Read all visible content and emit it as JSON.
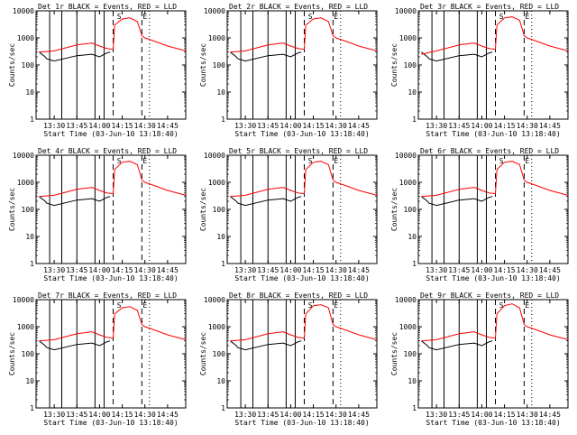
{
  "figure": {
    "start_time_label": "Start Time (03-Jun-10 13:18:40)",
    "y_axis_label": "Counts/sec",
    "x_tick_labels": [
      "13:30",
      "13:45",
      "14:00",
      "14:15",
      "14:30",
      "14:45"
    ],
    "y_tick_labels": [
      "1",
      "10",
      "100",
      "1000",
      "10000"
    ],
    "marker_labels": [
      "S",
      "E"
    ],
    "colors": {
      "events": "#000000",
      "lld": "#ff0000",
      "axes": "#000000",
      "background": "#ffffff"
    }
  },
  "chart_data": [
    {
      "type": "line",
      "title": "Det 1r BLACK = Events, RED = LLD",
      "x_range_hours": [
        "13:18",
        "14:57"
      ],
      "ylim": [
        1,
        10000
      ],
      "y_scale": "log",
      "series": [
        {
          "name": "Events",
          "color": "#000000",
          "x": [
            "13:20",
            "13:24",
            "13:25",
            "13:30",
            "13:45",
            "13:55",
            "14:00",
            "14:05",
            "14:07"
          ],
          "y": [
            300,
            200,
            170,
            140,
            220,
            250,
            200,
            280,
            300
          ]
        },
        {
          "name": "LLD",
          "color": "#ff0000",
          "x": [
            "13:20",
            "13:30",
            "13:45",
            "13:55",
            "14:00",
            "14:05",
            "14:09",
            "14:10",
            "14:15",
            "14:20",
            "14:25",
            "14:28",
            "14:30",
            "14:35",
            "14:45",
            "14:57"
          ],
          "y": [
            300,
            330,
            550,
            650,
            500,
            400,
            380,
            3000,
            5000,
            5500,
            4000,
            1200,
            1000,
            800,
            500,
            330
          ]
        }
      ],
      "vertical_lines": {
        "solid": [
          "13:27",
          "13:35",
          "13:45",
          "13:57",
          "14:03"
        ],
        "dashed": [
          "14:09",
          "14:28"
        ],
        "dotted": [
          "14:33"
        ]
      },
      "markers": {
        "S": "14:13",
        "E": "14:30"
      }
    },
    {
      "type": "line",
      "title": "Det 2r BLACK = Events, RED = LLD",
      "x_range_hours": [
        "13:18",
        "14:57"
      ],
      "ylim": [
        1,
        10000
      ],
      "y_scale": "log",
      "series": [
        {
          "name": "Events",
          "color": "#000000",
          "x": [
            "13:20",
            "13:24",
            "13:25",
            "13:30",
            "13:45",
            "13:55",
            "14:00",
            "14:05",
            "14:07"
          ],
          "y": [
            300,
            200,
            170,
            140,
            220,
            250,
            200,
            280,
            300
          ]
        },
        {
          "name": "LLD",
          "color": "#ff0000",
          "x": [
            "13:20",
            "13:30",
            "13:45",
            "13:55",
            "14:00",
            "14:05",
            "14:09",
            "14:10",
            "14:15",
            "14:20",
            "14:25",
            "14:28",
            "14:30",
            "14:35",
            "14:45",
            "14:57"
          ],
          "y": [
            300,
            330,
            550,
            650,
            500,
            400,
            380,
            3000,
            5000,
            5500,
            4000,
            1200,
            1000,
            800,
            500,
            330
          ]
        }
      ],
      "vertical_lines": {
        "solid": [
          "13:27",
          "13:35",
          "13:45",
          "13:57",
          "14:03"
        ],
        "dashed": [
          "14:09",
          "14:28"
        ],
        "dotted": [
          "14:33"
        ]
      },
      "markers": {
        "S": "14:13",
        "E": "14:30"
      }
    },
    {
      "type": "line",
      "title": "Det 3r BLACK = Events, RED = LLD",
      "x_range_hours": [
        "13:18",
        "14:57"
      ],
      "ylim": [
        1,
        10000
      ],
      "y_scale": "log",
      "series": [
        {
          "name": "Events",
          "color": "#000000",
          "x": [
            "13:20",
            "13:24",
            "13:25",
            "13:30",
            "13:45",
            "13:55",
            "14:00",
            "14:05",
            "14:07"
          ],
          "y": [
            300,
            200,
            170,
            140,
            220,
            250,
            200,
            280,
            300
          ]
        },
        {
          "name": "LLD",
          "color": "#ff0000",
          "x": [
            "13:20",
            "13:30",
            "13:45",
            "13:55",
            "14:00",
            "14:05",
            "14:09",
            "14:10",
            "14:15",
            "14:20",
            "14:25",
            "14:28",
            "14:30",
            "14:35",
            "14:45",
            "14:57"
          ],
          "y": [
            250,
            330,
            550,
            650,
            500,
            400,
            380,
            3000,
            5500,
            6000,
            4500,
            1200,
            1000,
            800,
            500,
            330
          ]
        }
      ],
      "vertical_lines": {
        "solid": [
          "13:27",
          "13:35",
          "13:45",
          "13:57",
          "14:03"
        ],
        "dashed": [
          "14:09",
          "14:28"
        ],
        "dotted": [
          "14:33"
        ]
      },
      "markers": {
        "S": "14:13",
        "E": "14:30"
      }
    },
    {
      "type": "line",
      "title": "Det 4r BLACK = Events, RED = LLD",
      "x_range_hours": [
        "13:18",
        "14:57"
      ],
      "ylim": [
        1,
        10000
      ],
      "y_scale": "log",
      "series": [
        {
          "name": "Events",
          "color": "#000000",
          "x": [
            "13:20",
            "13:24",
            "13:25",
            "13:30",
            "13:45",
            "13:55",
            "14:00",
            "14:05",
            "14:07"
          ],
          "y": [
            300,
            200,
            170,
            140,
            220,
            250,
            200,
            280,
            300
          ]
        },
        {
          "name": "LLD",
          "color": "#ff0000",
          "x": [
            "13:20",
            "13:30",
            "13:45",
            "13:55",
            "14:00",
            "14:05",
            "14:09",
            "14:10",
            "14:15",
            "14:20",
            "14:25",
            "14:28",
            "14:30",
            "14:35",
            "14:45",
            "14:57"
          ],
          "y": [
            300,
            330,
            550,
            650,
            500,
            400,
            380,
            3000,
            5500,
            6000,
            4500,
            1200,
            1000,
            800,
            500,
            330
          ]
        }
      ],
      "vertical_lines": {
        "solid": [
          "13:27",
          "13:35",
          "13:45",
          "13:57",
          "14:03"
        ],
        "dashed": [
          "14:09",
          "14:28"
        ],
        "dotted": [
          "14:33"
        ]
      },
      "markers": {
        "S": "14:13",
        "E": "14:30"
      }
    },
    {
      "type": "line",
      "title": "Det 5r BLACK = Events, RED = LLD",
      "x_range_hours": [
        "13:18",
        "14:57"
      ],
      "ylim": [
        1,
        10000
      ],
      "y_scale": "log",
      "series": [
        {
          "name": "Events",
          "color": "#000000",
          "x": [
            "13:20",
            "13:24",
            "13:25",
            "13:30",
            "13:45",
            "13:55",
            "14:00",
            "14:05",
            "14:07"
          ],
          "y": [
            300,
            200,
            170,
            140,
            220,
            250,
            200,
            280,
            300
          ]
        },
        {
          "name": "LLD",
          "color": "#ff0000",
          "x": [
            "13:20",
            "13:30",
            "13:45",
            "13:55",
            "14:00",
            "14:05",
            "14:09",
            "14:10",
            "14:15",
            "14:20",
            "14:25",
            "14:28",
            "14:30",
            "14:35",
            "14:45",
            "14:57"
          ],
          "y": [
            300,
            330,
            550,
            650,
            500,
            400,
            380,
            3000,
            5500,
            6000,
            4500,
            1200,
            1000,
            800,
            500,
            330
          ]
        }
      ],
      "vertical_lines": {
        "solid": [
          "13:27",
          "13:35",
          "13:45",
          "13:57",
          "14:03"
        ],
        "dashed": [
          "14:09",
          "14:28"
        ],
        "dotted": [
          "14:33"
        ]
      },
      "markers": {
        "S": "14:13",
        "E": "14:30"
      }
    },
    {
      "type": "line",
      "title": "Det 6r BLACK = Events, RED = LLD",
      "x_range_hours": [
        "13:18",
        "14:57"
      ],
      "ylim": [
        1,
        10000
      ],
      "y_scale": "log",
      "series": [
        {
          "name": "Events",
          "color": "#000000",
          "x": [
            "13:20",
            "13:24",
            "13:25",
            "13:30",
            "13:45",
            "13:55",
            "14:00",
            "14:05",
            "14:07"
          ],
          "y": [
            300,
            200,
            170,
            140,
            220,
            250,
            200,
            280,
            300
          ]
        },
        {
          "name": "LLD",
          "color": "#ff0000",
          "x": [
            "13:20",
            "13:30",
            "13:45",
            "13:55",
            "14:00",
            "14:05",
            "14:09",
            "14:10",
            "14:15",
            "14:20",
            "14:25",
            "14:28",
            "14:30",
            "14:35",
            "14:45",
            "14:57"
          ],
          "y": [
            300,
            330,
            550,
            650,
            500,
            400,
            380,
            3000,
            5500,
            6000,
            4500,
            1200,
            1000,
            800,
            500,
            330
          ]
        }
      ],
      "vertical_lines": {
        "solid": [
          "13:27",
          "13:35",
          "13:45",
          "13:57",
          "14:03"
        ],
        "dashed": [
          "14:09",
          "14:28"
        ],
        "dotted": [
          "14:33"
        ]
      },
      "markers": {
        "S": "14:13",
        "E": "14:30"
      }
    },
    {
      "type": "line",
      "title": "Det 7r BLACK = Events, RED = LLD",
      "x_range_hours": [
        "13:18",
        "14:57"
      ],
      "ylim": [
        1,
        10000
      ],
      "y_scale": "log",
      "series": [
        {
          "name": "Events",
          "color": "#000000",
          "x": [
            "13:20",
            "13:24",
            "13:25",
            "13:30",
            "13:45",
            "13:55",
            "14:00",
            "14:05",
            "14:07"
          ],
          "y": [
            300,
            200,
            170,
            140,
            220,
            250,
            200,
            280,
            300
          ]
        },
        {
          "name": "LLD",
          "color": "#ff0000",
          "x": [
            "13:20",
            "13:30",
            "13:45",
            "13:55",
            "14:00",
            "14:05",
            "14:09",
            "14:10",
            "14:15",
            "14:20",
            "14:25",
            "14:28",
            "14:30",
            "14:35",
            "14:45",
            "14:57"
          ],
          "y": [
            300,
            330,
            550,
            650,
            500,
            400,
            380,
            3000,
            5000,
            5500,
            4000,
            1200,
            1000,
            800,
            500,
            330
          ]
        }
      ],
      "vertical_lines": {
        "solid": [
          "13:27",
          "13:35",
          "13:45",
          "13:57",
          "14:03"
        ],
        "dashed": [
          "14:09",
          "14:28"
        ],
        "dotted": [
          "14:33"
        ]
      },
      "markers": {
        "S": "14:13",
        "E": "14:30"
      }
    },
    {
      "type": "line",
      "title": "Det 8r BLACK = Events, RED = LLD",
      "x_range_hours": [
        "13:18",
        "14:57"
      ],
      "ylim": [
        1,
        10000
      ],
      "y_scale": "log",
      "series": [
        {
          "name": "Events",
          "color": "#000000",
          "x": [
            "13:20",
            "13:24",
            "13:25",
            "13:30",
            "13:45",
            "13:55",
            "14:00",
            "14:05",
            "14:07"
          ],
          "y": [
            300,
            200,
            170,
            140,
            220,
            250,
            200,
            280,
            300
          ]
        },
        {
          "name": "LLD",
          "color": "#ff0000",
          "x": [
            "13:20",
            "13:30",
            "13:45",
            "13:55",
            "14:00",
            "14:05",
            "14:09",
            "14:10",
            "14:15",
            "14:20",
            "14:25",
            "14:28",
            "14:30",
            "14:35",
            "14:45",
            "14:57"
          ],
          "y": [
            300,
            330,
            550,
            650,
            500,
            400,
            380,
            3000,
            6000,
            6500,
            5000,
            1200,
            1000,
            800,
            500,
            330
          ]
        }
      ],
      "vertical_lines": {
        "solid": [
          "13:27",
          "13:35",
          "13:45",
          "13:57",
          "14:03"
        ],
        "dashed": [
          "14:09",
          "14:28"
        ],
        "dotted": [
          "14:33"
        ]
      },
      "markers": {
        "S": "14:13",
        "E": "14:30"
      }
    },
    {
      "type": "line",
      "title": "Det 9r BLACK = Events, RED = LLD",
      "x_range_hours": [
        "13:18",
        "14:57"
      ],
      "ylim": [
        1,
        10000
      ],
      "y_scale": "log",
      "series": [
        {
          "name": "Events",
          "color": "#000000",
          "x": [
            "13:20",
            "13:24",
            "13:25",
            "13:30",
            "13:45",
            "13:55",
            "14:00",
            "14:05",
            "14:07"
          ],
          "y": [
            300,
            200,
            170,
            140,
            220,
            250,
            200,
            280,
            300
          ]
        },
        {
          "name": "LLD",
          "color": "#ff0000",
          "x": [
            "13:20",
            "13:30",
            "13:45",
            "13:55",
            "14:00",
            "14:05",
            "14:09",
            "14:10",
            "14:15",
            "14:20",
            "14:25",
            "14:28",
            "14:30",
            "14:35",
            "14:45",
            "14:57"
          ],
          "y": [
            300,
            330,
            550,
            650,
            500,
            400,
            380,
            3000,
            6000,
            7000,
            5000,
            1200,
            1000,
            800,
            500,
            330
          ]
        }
      ],
      "vertical_lines": {
        "solid": [
          "13:27",
          "13:35",
          "13:45",
          "13:57",
          "14:03"
        ],
        "dashed": [
          "14:09",
          "14:28"
        ],
        "dotted": [
          "14:33"
        ]
      },
      "markers": {
        "S": "14:13",
        "E": "14:30"
      }
    }
  ]
}
